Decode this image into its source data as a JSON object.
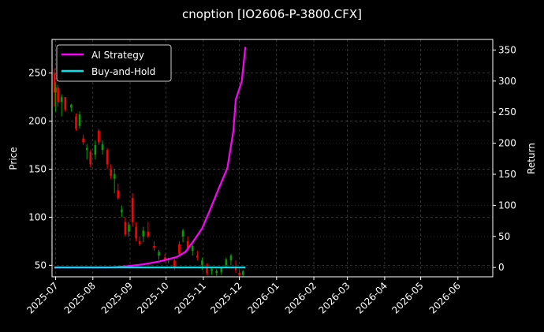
{
  "chart_data": {
    "type": "candlestick+line",
    "title": "cnoption [IO2606-P-3800.CFX]",
    "ylabel_left": "Price",
    "ylabel_right": "Return",
    "ylim_left": [
      38,
      285
    ],
    "ylim_right": [
      -15,
      367
    ],
    "yticks_left": [
      50,
      100,
      150,
      200,
      250
    ],
    "yticks_right": [
      0,
      50,
      100,
      150,
      200,
      250,
      300,
      350
    ],
    "xlim": [
      "2025-06-28",
      "2026-06-30"
    ],
    "xticks": [
      "2025-07",
      "2025-08",
      "2025-09",
      "2025-10",
      "2025-11",
      "2025-12",
      "2026-01",
      "2026-02",
      "2026-03",
      "2026-04",
      "2026-05",
      "2026-06"
    ],
    "grid": true,
    "legend_position": "upper-left",
    "colors": {
      "background": "#000000",
      "up": "#00a000",
      "down": "#ff0000",
      "strategy": "#ff00ff",
      "buyhold": "#00e5ee"
    },
    "series": [
      {
        "name": "AI Strategy",
        "color": "#ff00ff",
        "points": [
          [
            "2025-06-30",
            0
          ],
          [
            "2025-08-15",
            0
          ],
          [
            "2025-08-29",
            2
          ],
          [
            "2025-09-12",
            5
          ],
          [
            "2025-09-26",
            10
          ],
          [
            "2025-10-10",
            17
          ],
          [
            "2025-10-17",
            25
          ],
          [
            "2025-10-24",
            43
          ],
          [
            "2025-10-31",
            63
          ],
          [
            "2025-11-07",
            95
          ],
          [
            "2025-11-14",
            128
          ],
          [
            "2025-11-21",
            160
          ],
          [
            "2025-11-26",
            220
          ],
          [
            "2025-11-28",
            270
          ],
          [
            "2025-12-03",
            300
          ],
          [
            "2025-12-06",
            355
          ]
        ]
      },
      {
        "name": "Buy-and-Hold",
        "color": "#00e5ee",
        "points": [
          [
            "2025-06-30",
            0
          ],
          [
            "2025-12-06",
            0
          ]
        ]
      }
    ],
    "candles": [
      [
        "2025-06-30",
        250,
        255,
        215,
        230
      ],
      [
        "2025-07-01",
        230,
        240,
        210,
        235
      ],
      [
        "2025-07-03",
        235,
        238,
        215,
        220
      ],
      [
        "2025-07-06",
        220,
        228,
        205,
        225
      ],
      [
        "2025-07-09",
        225,
        225,
        210,
        212
      ],
      [
        "2025-07-14",
        214,
        218,
        210,
        217
      ],
      [
        "2025-07-18",
        205,
        208,
        190,
        192
      ],
      [
        "2025-07-21",
        195,
        210,
        192,
        207
      ],
      [
        "2025-07-24",
        182,
        186,
        175,
        178
      ],
      [
        "2025-07-27",
        170,
        176,
        160,
        172
      ],
      [
        "2025-07-30",
        168,
        170,
        152,
        155
      ],
      [
        "2025-08-03",
        165,
        180,
        160,
        175
      ],
      [
        "2025-08-06",
        190,
        192,
        175,
        178
      ],
      [
        "2025-08-09",
        170,
        180,
        165,
        176
      ],
      [
        "2025-08-13",
        170,
        172,
        150,
        155
      ],
      [
        "2025-08-16",
        150,
        155,
        140,
        143
      ],
      [
        "2025-08-19",
        140,
        150,
        125,
        145
      ],
      [
        "2025-08-22",
        128,
        135,
        118,
        120
      ],
      [
        "2025-08-25",
        105,
        112,
        100,
        108
      ],
      [
        "2025-08-28",
        95,
        100,
        80,
        82
      ],
      [
        "2025-08-31",
        85,
        95,
        80,
        92
      ],
      [
        "2025-09-03",
        120,
        125,
        90,
        95
      ],
      [
        "2025-09-06",
        90,
        95,
        75,
        78
      ],
      [
        "2025-09-09",
        75,
        80,
        70,
        72
      ],
      [
        "2025-09-12",
        80,
        90,
        74,
        86
      ],
      [
        "2025-09-16",
        85,
        95,
        78,
        80
      ],
      [
        "2025-09-21",
        70,
        75,
        65,
        68
      ],
      [
        "2025-09-25",
        60,
        66,
        56,
        64
      ],
      [
        "2025-09-30",
        58,
        62,
        53,
        55
      ],
      [
        "2025-10-03",
        55,
        58,
        52,
        57
      ],
      [
        "2025-10-08",
        55,
        57,
        45,
        48
      ],
      [
        "2025-10-12",
        72,
        75,
        60,
        62
      ],
      [
        "2025-10-15",
        80,
        88,
        74,
        86
      ],
      [
        "2025-10-19",
        75,
        80,
        65,
        68
      ],
      [
        "2025-10-23",
        65,
        72,
        60,
        70
      ],
      [
        "2025-10-27",
        60,
        65,
        55,
        58
      ],
      [
        "2025-10-31",
        50,
        58,
        45,
        55
      ],
      [
        "2025-11-04",
        48,
        52,
        40,
        42
      ],
      [
        "2025-11-08",
        44,
        48,
        40,
        46
      ],
      [
        "2025-11-12",
        42,
        46,
        39,
        44
      ],
      [
        "2025-11-16",
        43,
        48,
        40,
        47
      ],
      [
        "2025-11-20",
        50,
        58,
        48,
        56
      ],
      [
        "2025-11-24",
        55,
        62,
        50,
        60
      ],
      [
        "2025-11-28",
        48,
        55,
        42,
        45
      ],
      [
        "2025-12-01",
        42,
        46,
        38,
        40
      ],
      [
        "2025-12-04",
        40,
        45,
        38,
        44
      ]
    ]
  }
}
